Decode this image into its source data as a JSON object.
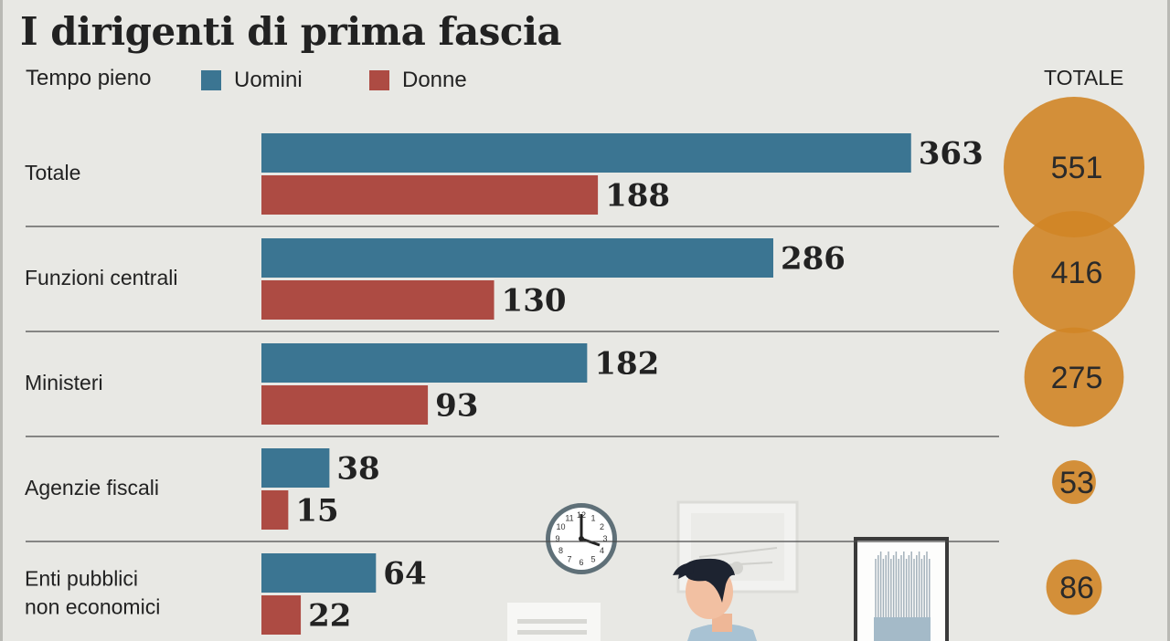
{
  "chart_data": {
    "type": "bar",
    "title": "I dirigenti di prima fascia",
    "subtitle": "Tempo pieno",
    "orientation": "horizontal",
    "totals_header": "TOTALE",
    "categories": [
      "Totale",
      "Funzioni centrali",
      "Ministeri",
      "Agenzie fiscali",
      "Enti pubblici non economici"
    ],
    "category_lines": [
      [
        "Totale"
      ],
      [
        "Funzioni centrali"
      ],
      [
        "Ministeri"
      ],
      [
        "Agenzie fiscali"
      ],
      [
        "Enti pubblici",
        "non economici"
      ]
    ],
    "series": [
      {
        "name": "Uomini",
        "color": "#3b7592",
        "values": [
          363,
          286,
          182,
          38,
          64
        ]
      },
      {
        "name": "Donne",
        "color": "#ad4b43",
        "values": [
          188,
          130,
          93,
          15,
          22
        ]
      }
    ],
    "totals": [
      551,
      416,
      275,
      53,
      86
    ],
    "totals_color": "#d08526",
    "legend_position": "top-left",
    "grid": false
  },
  "illustration": {
    "icons": [
      "wall-clock-icon",
      "picture-frame-icon",
      "wall-art-icon",
      "office-worker-icon",
      "calendar-icon"
    ],
    "clock_numbers": [
      "12",
      "1",
      "2",
      "3",
      "4",
      "5",
      "6",
      "7",
      "8",
      "9",
      "10",
      "11"
    ]
  }
}
